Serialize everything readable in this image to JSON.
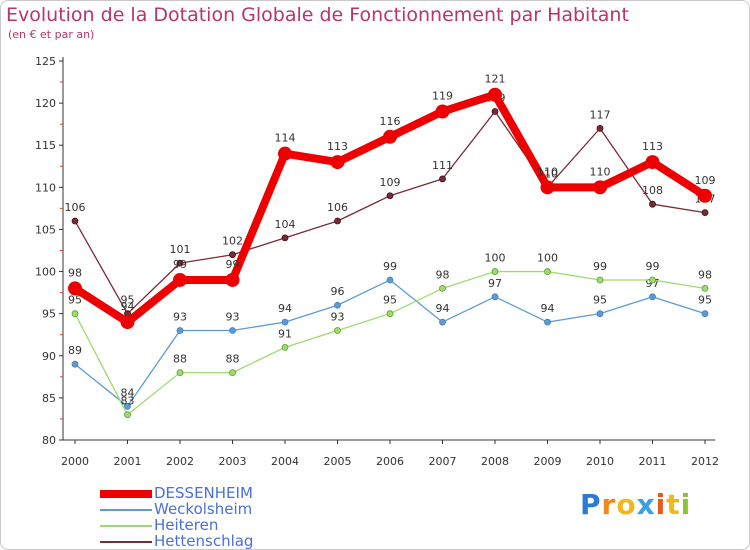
{
  "title": "Evolution de la Dotation Globale de Fonctionnement par Habitant",
  "subtitle": "(en € et par an)",
  "brand": {
    "letters": [
      "P",
      "r",
      "o",
      "x",
      "i",
      "t",
      "i"
    ],
    "colors": [
      "#2a7bd6",
      "#f08a1c",
      "#f0b81c",
      "#3aa0e0",
      "#e85a1c",
      "#f0b81c",
      "#8ac43a"
    ]
  },
  "chart_data": {
    "type": "line",
    "title": "Evolution de la Dotation Globale de Fonctionnement par Habitant",
    "subtitle": "(en € et par an)",
    "x": [
      "2000",
      "2001",
      "2002",
      "2003",
      "2004",
      "2005",
      "2006",
      "2007",
      "2008",
      "2009",
      "2010",
      "2011",
      "2012"
    ],
    "ylim": [
      80,
      125
    ],
    "yticks": [
      80,
      85,
      90,
      95,
      100,
      105,
      110,
      115,
      120,
      125
    ],
    "grid": false,
    "legend_position": "bottom-left",
    "series": [
      {
        "name": "DESSENHEIM",
        "color": "#ee0000",
        "values": [
          98,
          94,
          99,
          99,
          114,
          113,
          116,
          119,
          121,
          110,
          110,
          113,
          109
        ]
      },
      {
        "name": "Weckolsheim",
        "color": "#5b9bd5",
        "values": [
          89,
          84,
          93,
          93,
          94,
          96,
          99,
          94,
          97,
          94,
          95,
          97,
          95
        ]
      },
      {
        "name": "Heiteren",
        "color": "#9fdb70",
        "values": [
          95,
          83,
          88,
          88,
          91,
          93,
          95,
          98,
          100,
          100,
          99,
          99,
          98
        ]
      },
      {
        "name": "Hettenschlag",
        "color": "#7a2b35",
        "values": [
          106,
          95,
          101,
          102,
          104,
          106,
          109,
          111,
          119,
          110,
          117,
          108,
          107
        ]
      }
    ]
  }
}
